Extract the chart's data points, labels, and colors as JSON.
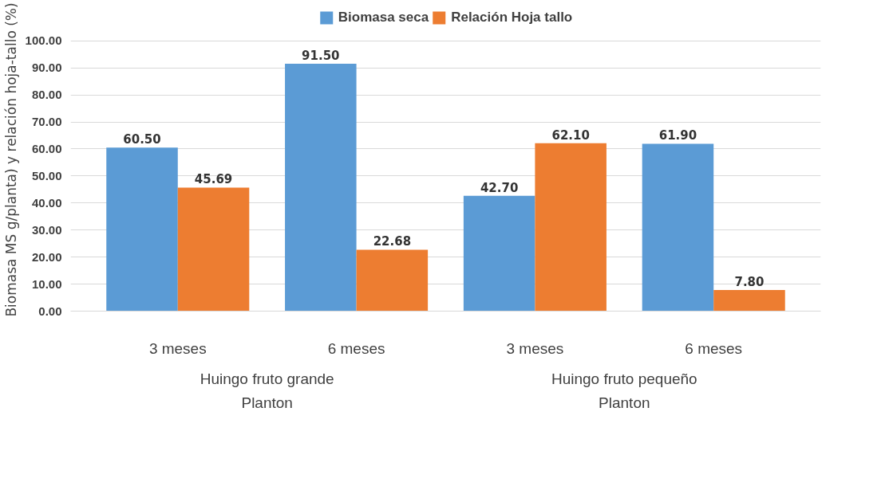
{
  "chart_data": {
    "type": "bar",
    "ylabel": "Biomasa MS g/planta) y relación hoja-tallo (%)",
    "categories": [
      "3 meses",
      "6 meses",
      "3 meses",
      "6 meses"
    ],
    "series": [
      {
        "name": "Biomasa seca",
        "color": "#5b9bd5",
        "values": [
          60.5,
          91.5,
          42.7,
          61.9
        ],
        "value_labels": [
          "60.50",
          "91.50",
          "42.70",
          "61.90"
        ]
      },
      {
        "name": "Relación Hoja tallo",
        "color": "#ed7d31",
        "values": [
          45.69,
          22.68,
          62.1,
          7.8
        ],
        "value_labels": [
          "45.69",
          "22.68",
          "62.10",
          "7.80"
        ]
      }
    ],
    "annotations": [
      "Huingo fruto grande\nPlanton",
      "Huingo fruto pequeño\nPlanton"
    ],
    "ylim": [
      0,
      100
    ],
    "yticks": [
      {
        "value": 0,
        "label": "0.00"
      },
      {
        "value": 10,
        "label": "10.00"
      },
      {
        "value": 20,
        "label": "20.00"
      },
      {
        "value": 30,
        "label": "30.00"
      },
      {
        "value": 40,
        "label": "40.00"
      },
      {
        "value": 50,
        "label": "50.00"
      },
      {
        "value": 60,
        "label": "60.00"
      },
      {
        "value": 70,
        "label": "70.00"
      },
      {
        "value": 80,
        "label": "80.00"
      },
      {
        "value": 90,
        "label": "90.00"
      },
      {
        "value": 100,
        "label": "100.00"
      }
    ],
    "grid": "y",
    "legend": "top"
  }
}
